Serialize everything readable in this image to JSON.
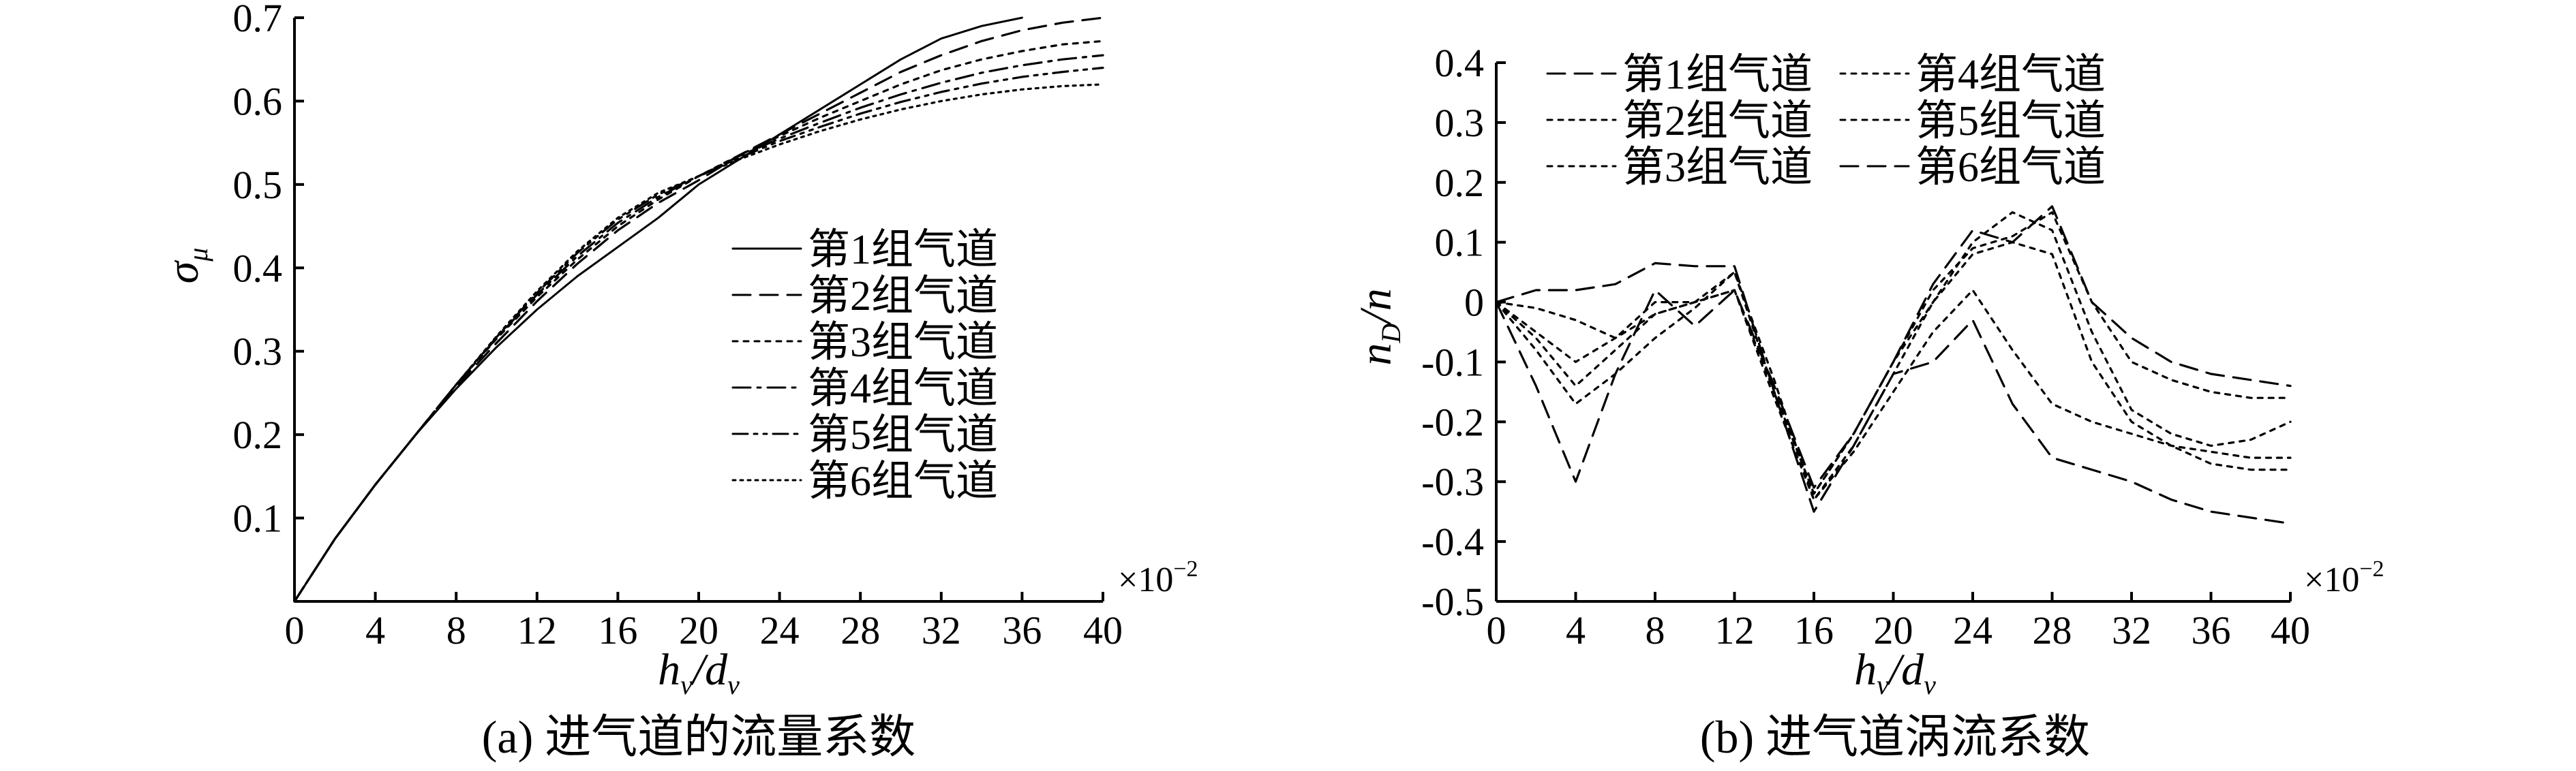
{
  "chart_data": [
    {
      "type": "line",
      "caption": "(a) 进气道的流量系数",
      "ylabel": "σ_μ",
      "xlabel": "h_v/d_v",
      "x_multiplier": "×10⁻²",
      "xlim": [
        0,
        40
      ],
      "ylim": [
        0,
        0.7
      ],
      "xticks": [
        0,
        4,
        8,
        12,
        16,
        20,
        24,
        28,
        32,
        36,
        40
      ],
      "yticks": [
        0.1,
        0.2,
        0.3,
        0.4,
        0.5,
        0.6,
        0.7
      ],
      "legend_position": "center-right",
      "series": [
        {
          "name": "第1组气道",
          "style": "solid",
          "x": [
            0,
            2,
            4,
            6,
            8,
            10,
            12,
            14,
            16,
            18,
            20,
            22,
            24,
            26,
            28,
            30,
            32,
            34,
            36
          ],
          "y": [
            0,
            0.075,
            0.14,
            0.2,
            0.255,
            0.305,
            0.35,
            0.39,
            0.425,
            0.46,
            0.5,
            0.53,
            0.56,
            0.59,
            0.62,
            0.65,
            0.675,
            0.69,
            0.7
          ]
        },
        {
          "name": "第2组气道",
          "style": "dashed",
          "x": [
            0,
            2,
            4,
            6,
            8,
            10,
            12,
            14,
            16,
            18,
            20,
            22,
            24,
            26,
            28,
            30,
            32,
            34,
            36,
            38,
            40
          ],
          "y": [
            0,
            0.075,
            0.14,
            0.2,
            0.258,
            0.31,
            0.36,
            0.405,
            0.445,
            0.478,
            0.505,
            0.535,
            0.56,
            0.585,
            0.61,
            0.635,
            0.655,
            0.672,
            0.685,
            0.694,
            0.7
          ]
        },
        {
          "name": "第3组气道",
          "style": "dotted",
          "x": [
            0,
            2,
            4,
            6,
            8,
            10,
            12,
            14,
            16,
            18,
            20,
            22,
            24,
            26,
            28,
            30,
            32,
            34,
            36,
            38,
            40
          ],
          "y": [
            0,
            0.075,
            0.14,
            0.2,
            0.26,
            0.315,
            0.365,
            0.41,
            0.45,
            0.482,
            0.51,
            0.535,
            0.558,
            0.58,
            0.6,
            0.62,
            0.637,
            0.65,
            0.66,
            0.668,
            0.672
          ]
        },
        {
          "name": "第4组气道",
          "style": "dashdot",
          "x": [
            0,
            2,
            4,
            6,
            8,
            10,
            12,
            14,
            16,
            18,
            20,
            22,
            24,
            26,
            28,
            30,
            32,
            34,
            36,
            38,
            40
          ],
          "y": [
            0,
            0.075,
            0.14,
            0.2,
            0.26,
            0.316,
            0.368,
            0.414,
            0.454,
            0.485,
            0.51,
            0.534,
            0.555,
            0.574,
            0.592,
            0.608,
            0.622,
            0.634,
            0.643,
            0.65,
            0.655
          ]
        },
        {
          "name": "第5组气道",
          "style": "dashdotdot",
          "x": [
            0,
            2,
            4,
            6,
            8,
            10,
            12,
            14,
            16,
            18,
            20,
            22,
            24,
            26,
            28,
            30,
            32,
            34,
            36,
            38,
            40
          ],
          "y": [
            0,
            0.075,
            0.14,
            0.2,
            0.26,
            0.317,
            0.37,
            0.418,
            0.458,
            0.488,
            0.51,
            0.532,
            0.552,
            0.569,
            0.585,
            0.599,
            0.611,
            0.621,
            0.629,
            0.635,
            0.64
          ]
        },
        {
          "name": "第6组气道",
          "style": "finedotted",
          "x": [
            0,
            2,
            4,
            6,
            8,
            10,
            12,
            14,
            16,
            18,
            20,
            22,
            24,
            26,
            28,
            30,
            32,
            34,
            36,
            38,
            40
          ],
          "y": [
            0,
            0.075,
            0.14,
            0.2,
            0.26,
            0.318,
            0.372,
            0.42,
            0.46,
            0.49,
            0.51,
            0.53,
            0.548,
            0.564,
            0.578,
            0.59,
            0.6,
            0.608,
            0.614,
            0.618,
            0.62
          ]
        }
      ]
    },
    {
      "type": "line",
      "caption": "(b) 进气道涡流系数",
      "ylabel": "n_D/n",
      "xlabel": "h_v/d_v",
      "x_multiplier": "×10⁻²",
      "xlim": [
        0,
        40
      ],
      "ylim": [
        -0.5,
        0.4
      ],
      "xticks": [
        0,
        4,
        8,
        12,
        16,
        20,
        24,
        28,
        32,
        36,
        40
      ],
      "yticks": [
        -0.5,
        -0.4,
        -0.3,
        -0.2,
        -0.1,
        0,
        0.1,
        0.2,
        0.3,
        0.4
      ],
      "legend_position": "top",
      "series": [
        {
          "name": "第1组气道",
          "style": "dashed",
          "x": [
            0,
            2,
            4,
            6,
            8,
            10,
            12,
            14,
            16,
            18,
            20,
            22,
            24,
            26,
            28,
            30,
            32,
            34,
            36,
            38,
            40
          ],
          "y": [
            0,
            0.02,
            0.02,
            0.03,
            0.065,
            0.06,
            0.06,
            -0.15,
            -0.35,
            -0.24,
            -0.12,
            -0.1,
            -0.03,
            -0.17,
            -0.26,
            -0.28,
            -0.3,
            -0.33,
            -0.35,
            -0.36,
            -0.37
          ]
        },
        {
          "name": "第2组气道",
          "style": "dotted",
          "x": [
            0,
            2,
            4,
            6,
            8,
            10,
            12,
            14,
            16,
            18,
            20,
            22,
            24,
            26,
            28,
            30,
            32,
            34,
            36,
            38,
            40
          ],
          "y": [
            0,
            -0.01,
            -0.03,
            -0.06,
            0.0,
            0.0,
            0.05,
            -0.13,
            -0.33,
            -0.25,
            -0.15,
            -0.05,
            0.02,
            -0.08,
            -0.17,
            -0.2,
            -0.22,
            -0.24,
            -0.25,
            -0.26,
            -0.26
          ]
        },
        {
          "name": "第3组气道",
          "style": "dotted",
          "x": [
            0,
            2,
            4,
            6,
            8,
            10,
            12,
            14,
            16,
            18,
            20,
            22,
            24,
            26,
            28,
            30,
            32,
            34,
            36,
            38,
            40
          ],
          "y": [
            0,
            -0.08,
            -0.17,
            -0.12,
            -0.06,
            -0.01,
            0.05,
            -0.15,
            -0.32,
            -0.22,
            -0.1,
            0.0,
            0.1,
            0.15,
            0.12,
            -0.05,
            -0.18,
            -0.22,
            -0.24,
            -0.23,
            -0.2
          ]
        },
        {
          "name": "第4组气道",
          "style": "dotted",
          "x": [
            0,
            2,
            4,
            6,
            8,
            10,
            12,
            14,
            16,
            18,
            20,
            22,
            24,
            26,
            28,
            30,
            32,
            34,
            36,
            38,
            40
          ],
          "y": [
            0,
            -0.06,
            -0.14,
            -0.08,
            -0.02,
            0.0,
            0.02,
            -0.16,
            -0.33,
            -0.24,
            -0.12,
            0.0,
            0.08,
            0.1,
            0.08,
            -0.1,
            -0.2,
            -0.24,
            -0.27,
            -0.28,
            -0.28
          ]
        },
        {
          "name": "第5组气道",
          "style": "dotted",
          "x": [
            0,
            2,
            4,
            6,
            8,
            10,
            12,
            14,
            16,
            18,
            20,
            22,
            24,
            26,
            28,
            30,
            32,
            34,
            36,
            38,
            40
          ],
          "y": [
            0,
            -0.05,
            -0.1,
            -0.06,
            -0.02,
            0.0,
            0.02,
            -0.15,
            -0.32,
            -0.22,
            -0.1,
            0.02,
            0.09,
            0.11,
            0.15,
            0.0,
            -0.1,
            -0.13,
            -0.15,
            -0.16,
            -0.16
          ]
        },
        {
          "name": "第6组气道",
          "style": "dashed",
          "x": [
            0,
            2,
            4,
            6,
            8,
            10,
            12,
            14,
            16,
            18,
            20,
            22,
            24,
            26,
            28,
            30,
            32,
            34,
            36,
            38,
            40
          ],
          "y": [
            0,
            -0.14,
            -0.3,
            -0.12,
            0.02,
            -0.04,
            0.02,
            -0.14,
            -0.31,
            -0.22,
            -0.1,
            0.03,
            0.12,
            0.1,
            0.16,
            0.0,
            -0.06,
            -0.1,
            -0.12,
            -0.13,
            -0.14
          ]
        }
      ]
    }
  ]
}
